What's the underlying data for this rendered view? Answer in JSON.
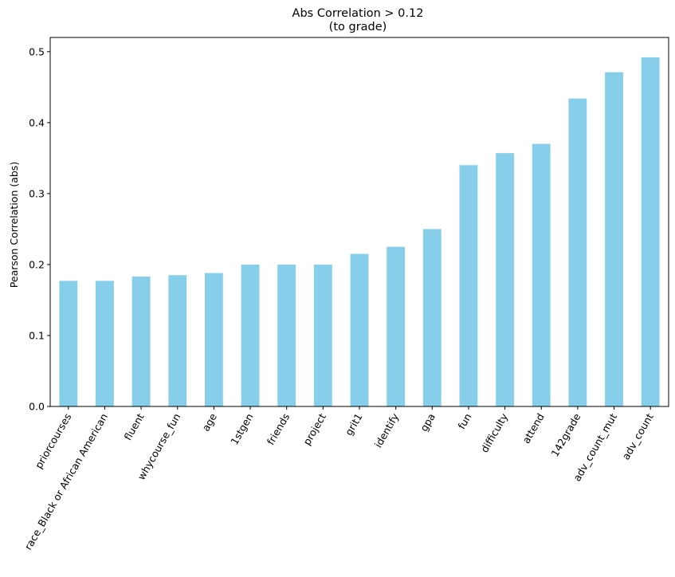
{
  "chart_data": {
    "type": "bar",
    "title": "Abs Correlation > 0.12",
    "subtitle": "(to grade)",
    "xlabel": "",
    "ylabel": "Pearson Correlation (abs)",
    "ylim": [
      0,
      0.52
    ],
    "yticks": [
      "0.0",
      "0.1",
      "0.2",
      "0.3",
      "0.4",
      "0.5"
    ],
    "categories": [
      "priorcourses",
      "race_Black or African American",
      "fluent",
      "whycourse_fun",
      "age",
      "1stgen",
      "friends",
      "project",
      "grit1",
      "identify",
      "gpa",
      "fun",
      "difficulty",
      "attend",
      "142grade",
      "adv_count_mut",
      "adv_count"
    ],
    "values": [
      0.177,
      0.177,
      0.183,
      0.185,
      0.188,
      0.2,
      0.2,
      0.2,
      0.215,
      0.225,
      0.25,
      0.34,
      0.357,
      0.37,
      0.434,
      0.471,
      0.492
    ],
    "bar_color": "#87ceeb",
    "grid": false,
    "legend": "none"
  }
}
